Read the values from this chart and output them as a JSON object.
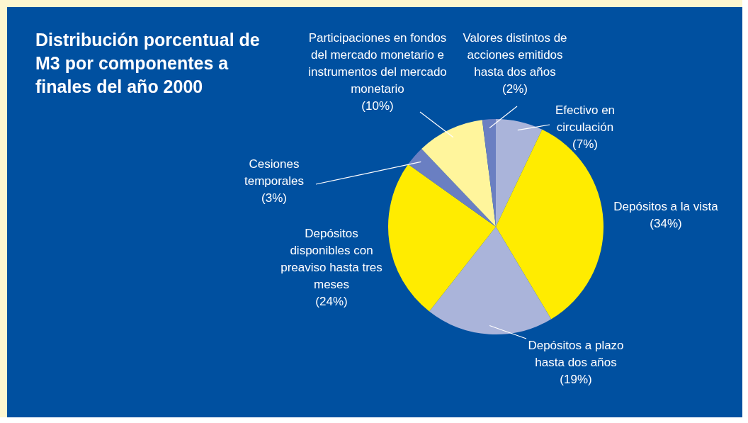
{
  "chart_data": {
    "type": "pie",
    "title": "Distribución porcentual de M3 por componentes a finales del  año 2000",
    "categories": [
      "Efectivo en circulación",
      "Depósitos a la vista",
      "Depósitos a plazo hasta dos años",
      "Depósitos disponibles con preaviso hasta tres meses",
      "Cesiones temporales",
      "Participaciones en fondos del mercado monetario e instrumentos del mercado monetario",
      "Valores distintos de acciones emitidos hasta dos años"
    ],
    "values": [
      7,
      34,
      19,
      24,
      3,
      10,
      2
    ],
    "value_labels": [
      "(7%)",
      "(34%)",
      "(19%)",
      "(24%)",
      "(3%)",
      "(10%)",
      "(2%)"
    ],
    "colors": [
      "#aab4da",
      "#ffec00",
      "#aab4da",
      "#ffec00",
      "#6a7fc2",
      "#fff59c",
      "#6a7fc2"
    ]
  }
}
